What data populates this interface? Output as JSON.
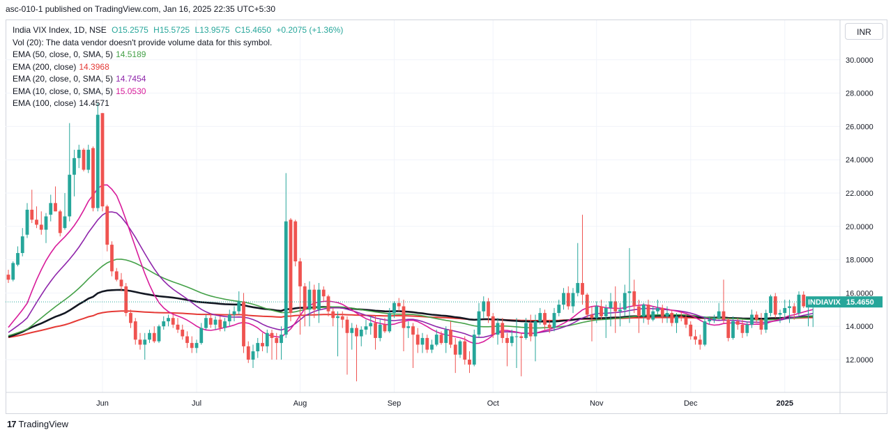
{
  "header": {
    "publisher_line": "asc-010-1 published on TradingView.com, Jan 16, 2025 22:35 UTC+5:30"
  },
  "currency_button": "INR",
  "legend": {
    "symbol_line": "India VIX Index, 1D, NSE",
    "ohlc": {
      "o": "O15.2575",
      "h": "H15.5725",
      "l": "L13.9575",
      "c": "C15.4650",
      "chg": "+0.2075 (+1.36%)"
    },
    "vol_line": "Vol (20): The data vendor doesn't provide volume data for this symbol.",
    "ema_rows": [
      {
        "label": "EMA (50, close, 0, SMA, 5)",
        "value": "14.5189",
        "color": "#43a047"
      },
      {
        "label": "EMA (200, close)",
        "value": "14.3968",
        "color": "#e53935"
      },
      {
        "label": "EMA (20, close, 0, SMA, 5)",
        "value": "14.7454",
        "color": "#8e24aa"
      },
      {
        "label": "EMA (10, close, 0, SMA, 5)",
        "value": "15.0530",
        "color": "#d81b9a"
      },
      {
        "label": "EMA (100, close)",
        "value": "14.4571",
        "color": "#131722"
      }
    ]
  },
  "footer": {
    "brand": "TradingView",
    "logo_mark": "17"
  },
  "chart_data": {
    "type": "candlestick",
    "symbol": "INDIAVIX",
    "last_price_label": "15.4650",
    "ylim": [
      10,
      31.5
    ],
    "y_ticks": [
      12,
      14,
      16,
      18,
      20,
      22,
      24,
      26,
      28,
      30
    ],
    "y_tick_labels": [
      "12.0000",
      "14.0000",
      "16.0000",
      "18.0000",
      "20.0000",
      "22.0000",
      "24.0000",
      "26.0000",
      "28.0000",
      "30.0000"
    ],
    "x_tick_labels": [
      {
        "label": "Jun",
        "index": 20
      },
      {
        "label": "Jul",
        "index": 40
      },
      {
        "label": "Aug",
        "index": 62
      },
      {
        "label": "Sep",
        "index": 82
      },
      {
        "label": "Oct",
        "index": 103
      },
      {
        "label": "Nov",
        "index": 125
      },
      {
        "label": "Dec",
        "index": 145
      },
      {
        "label": "2025",
        "index": 165
      }
    ],
    "colors": {
      "up": "#26a69a",
      "down": "#ef5350",
      "ema10": "#d81b9a",
      "ema20": "#8e24aa",
      "ema50": "#43a047",
      "ema100": "#131722",
      "ema200": "#e53935",
      "last": "#26a69a"
    },
    "candles": [
      {
        "o": 17.1,
        "h": 17.4,
        "l": 16.6,
        "c": 16.8
      },
      {
        "o": 16.8,
        "h": 17.9,
        "l": 16.7,
        "c": 17.8
      },
      {
        "o": 17.7,
        "h": 18.8,
        "l": 17.6,
        "c": 18.4
      },
      {
        "o": 18.4,
        "h": 19.9,
        "l": 18.2,
        "c": 19.4
      },
      {
        "o": 19.5,
        "h": 21.4,
        "l": 19.3,
        "c": 21.0
      },
      {
        "o": 21.0,
        "h": 22.2,
        "l": 20.2,
        "c": 20.4
      },
      {
        "o": 20.4,
        "h": 21.2,
        "l": 19.9,
        "c": 20.1
      },
      {
        "o": 20.1,
        "h": 20.9,
        "l": 19.5,
        "c": 19.8
      },
      {
        "o": 19.8,
        "h": 20.8,
        "l": 19.0,
        "c": 20.6
      },
      {
        "o": 20.7,
        "h": 21.9,
        "l": 20.3,
        "c": 21.4
      },
      {
        "o": 21.4,
        "h": 22.4,
        "l": 20.9,
        "c": 20.9
      },
      {
        "o": 20.9,
        "h": 21.0,
        "l": 19.4,
        "c": 19.6
      },
      {
        "o": 19.9,
        "h": 22.0,
        "l": 19.8,
        "c": 20.6
      },
      {
        "o": 20.6,
        "h": 26.2,
        "l": 20.3,
        "c": 23.1
      },
      {
        "o": 23.1,
        "h": 24.6,
        "l": 21.8,
        "c": 24.1
      },
      {
        "o": 24.1,
        "h": 24.9,
        "l": 23.5,
        "c": 24.6
      },
      {
        "o": 24.6,
        "h": 24.7,
        "l": 23.3,
        "c": 23.4
      },
      {
        "o": 23.4,
        "h": 24.9,
        "l": 23.2,
        "c": 24.6
      },
      {
        "o": 24.7,
        "h": 24.8,
        "l": 20.9,
        "c": 21.1
      },
      {
        "o": 21.1,
        "h": 27.4,
        "l": 20.9,
        "c": 26.7
      },
      {
        "o": 26.8,
        "h": 26.8,
        "l": 20.9,
        "c": 21.2
      },
      {
        "o": 21.2,
        "h": 21.3,
        "l": 18.5,
        "c": 18.9
      },
      {
        "o": 18.9,
        "h": 19.1,
        "l": 17.0,
        "c": 17.3
      },
      {
        "o": 17.3,
        "h": 17.5,
        "l": 16.7,
        "c": 16.8
      },
      {
        "o": 16.8,
        "h": 17.2,
        "l": 16.1,
        "c": 16.4
      },
      {
        "o": 16.4,
        "h": 16.6,
        "l": 14.6,
        "c": 14.8
      },
      {
        "o": 14.8,
        "h": 15.0,
        "l": 13.9,
        "c": 14.2
      },
      {
        "o": 14.3,
        "h": 14.5,
        "l": 12.9,
        "c": 13.2
      },
      {
        "o": 13.2,
        "h": 13.6,
        "l": 12.6,
        "c": 12.9
      },
      {
        "o": 12.9,
        "h": 13.6,
        "l": 12.0,
        "c": 13.2
      },
      {
        "o": 13.2,
        "h": 13.8,
        "l": 13.0,
        "c": 13.6
      },
      {
        "o": 13.6,
        "h": 14.0,
        "l": 13.0,
        "c": 13.1
      },
      {
        "o": 13.1,
        "h": 14.1,
        "l": 13.0,
        "c": 14.0
      },
      {
        "o": 14.0,
        "h": 14.6,
        "l": 13.8,
        "c": 14.3
      },
      {
        "o": 14.3,
        "h": 14.7,
        "l": 14.0,
        "c": 14.5
      },
      {
        "o": 14.5,
        "h": 14.7,
        "l": 13.9,
        "c": 14.1
      },
      {
        "o": 14.1,
        "h": 14.5,
        "l": 13.6,
        "c": 13.8
      },
      {
        "o": 13.8,
        "h": 14.1,
        "l": 13.2,
        "c": 13.4
      },
      {
        "o": 13.4,
        "h": 13.7,
        "l": 12.7,
        "c": 13.0
      },
      {
        "o": 13.0,
        "h": 13.4,
        "l": 12.4,
        "c": 12.7
      },
      {
        "o": 12.7,
        "h": 13.2,
        "l": 12.4,
        "c": 13.0
      },
      {
        "o": 13.0,
        "h": 14.2,
        "l": 12.9,
        "c": 13.9
      },
      {
        "o": 13.9,
        "h": 14.7,
        "l": 13.8,
        "c": 14.5
      },
      {
        "o": 14.5,
        "h": 14.8,
        "l": 13.9,
        "c": 14.1
      },
      {
        "o": 14.1,
        "h": 14.6,
        "l": 13.8,
        "c": 14.4
      },
      {
        "o": 14.4,
        "h": 14.6,
        "l": 13.7,
        "c": 13.9
      },
      {
        "o": 13.9,
        "h": 14.5,
        "l": 13.7,
        "c": 14.3
      },
      {
        "o": 14.3,
        "h": 15.0,
        "l": 14.0,
        "c": 14.7
      },
      {
        "o": 14.7,
        "h": 15.2,
        "l": 14.3,
        "c": 14.9
      },
      {
        "o": 14.9,
        "h": 16.1,
        "l": 14.7,
        "c": 15.5
      },
      {
        "o": 15.5,
        "h": 16.0,
        "l": 12.4,
        "c": 12.8
      },
      {
        "o": 12.8,
        "h": 13.1,
        "l": 11.8,
        "c": 12.0
      },
      {
        "o": 12.0,
        "h": 12.9,
        "l": 11.5,
        "c": 12.5
      },
      {
        "o": 12.5,
        "h": 13.3,
        "l": 12.1,
        "c": 13.0
      },
      {
        "o": 13.0,
        "h": 13.6,
        "l": 12.5,
        "c": 12.8
      },
      {
        "o": 12.8,
        "h": 13.8,
        "l": 12.4,
        "c": 13.6
      },
      {
        "o": 13.6,
        "h": 13.8,
        "l": 12.0,
        "c": 13.3
      },
      {
        "o": 13.3,
        "h": 13.6,
        "l": 12.0,
        "c": 13.0
      },
      {
        "o": 13.0,
        "h": 14.0,
        "l": 12.0,
        "c": 13.5
      },
      {
        "o": 13.5,
        "h": 23.2,
        "l": 13.3,
        "c": 20.3
      },
      {
        "o": 20.4,
        "h": 20.5,
        "l": 14.3,
        "c": 14.8
      },
      {
        "o": 20.3,
        "h": 20.4,
        "l": 17.6,
        "c": 17.9
      },
      {
        "o": 17.9,
        "h": 18.1,
        "l": 13.5,
        "c": 16.4
      },
      {
        "o": 16.4,
        "h": 16.6,
        "l": 14.0,
        "c": 15.0
      },
      {
        "o": 15.0,
        "h": 16.7,
        "l": 14.0,
        "c": 16.2
      },
      {
        "o": 16.2,
        "h": 16.5,
        "l": 14.5,
        "c": 15.0
      },
      {
        "o": 15.0,
        "h": 16.6,
        "l": 14.2,
        "c": 16.2
      },
      {
        "o": 16.2,
        "h": 16.4,
        "l": 15.5,
        "c": 15.8
      },
      {
        "o": 15.8,
        "h": 15.9,
        "l": 14.6,
        "c": 14.9
      },
      {
        "o": 14.9,
        "h": 15.1,
        "l": 14.0,
        "c": 14.5
      },
      {
        "o": 14.5,
        "h": 14.9,
        "l": 12.2,
        "c": 14.6
      },
      {
        "o": 14.6,
        "h": 14.9,
        "l": 13.9,
        "c": 14.4
      },
      {
        "o": 14.4,
        "h": 14.6,
        "l": 11.1,
        "c": 13.6
      },
      {
        "o": 13.6,
        "h": 14.2,
        "l": 12.6,
        "c": 13.9
      },
      {
        "o": 13.9,
        "h": 14.1,
        "l": 10.7,
        "c": 13.4
      },
      {
        "o": 13.4,
        "h": 14.0,
        "l": 12.8,
        "c": 13.8
      },
      {
        "o": 13.8,
        "h": 14.4,
        "l": 13.5,
        "c": 14.0
      },
      {
        "o": 14.0,
        "h": 14.6,
        "l": 13.5,
        "c": 14.2
      },
      {
        "o": 14.2,
        "h": 14.6,
        "l": 12.6,
        "c": 13.3
      },
      {
        "o": 13.3,
        "h": 14.4,
        "l": 13.1,
        "c": 14.1
      },
      {
        "o": 14.1,
        "h": 14.5,
        "l": 13.6,
        "c": 13.7
      },
      {
        "o": 13.7,
        "h": 15.1,
        "l": 13.6,
        "c": 14.8
      },
      {
        "o": 14.8,
        "h": 15.5,
        "l": 14.5,
        "c": 15.4
      },
      {
        "o": 15.4,
        "h": 15.7,
        "l": 14.9,
        "c": 15.2
      },
      {
        "o": 15.2,
        "h": 15.6,
        "l": 12.5,
        "c": 13.9
      },
      {
        "o": 13.9,
        "h": 14.3,
        "l": 13.3,
        "c": 14.0
      },
      {
        "o": 14.0,
        "h": 14.2,
        "l": 11.5,
        "c": 13.5
      },
      {
        "o": 13.5,
        "h": 13.9,
        "l": 12.4,
        "c": 12.9
      },
      {
        "o": 12.9,
        "h": 13.6,
        "l": 12.4,
        "c": 13.3
      },
      {
        "o": 13.3,
        "h": 13.5,
        "l": 12.4,
        "c": 12.6
      },
      {
        "o": 12.6,
        "h": 13.2,
        "l": 12.4,
        "c": 12.9
      },
      {
        "o": 12.9,
        "h": 13.8,
        "l": 12.8,
        "c": 13.5
      },
      {
        "o": 13.5,
        "h": 13.7,
        "l": 12.9,
        "c": 13.0
      },
      {
        "o": 13.0,
        "h": 14.0,
        "l": 12.4,
        "c": 13.8
      },
      {
        "o": 13.8,
        "h": 14.3,
        "l": 12.7,
        "c": 12.9
      },
      {
        "o": 12.9,
        "h": 13.3,
        "l": 11.2,
        "c": 12.3
      },
      {
        "o": 12.3,
        "h": 13.2,
        "l": 12.1,
        "c": 13.1
      },
      {
        "o": 13.1,
        "h": 13.4,
        "l": 11.7,
        "c": 12.0
      },
      {
        "o": 12.0,
        "h": 12.5,
        "l": 11.2,
        "c": 11.7
      },
      {
        "o": 11.7,
        "h": 13.8,
        "l": 11.6,
        "c": 13.5
      },
      {
        "o": 13.5,
        "h": 15.4,
        "l": 13.3,
        "c": 14.9
      },
      {
        "o": 14.9,
        "h": 15.8,
        "l": 14.5,
        "c": 15.5
      },
      {
        "o": 15.5,
        "h": 15.7,
        "l": 14.2,
        "c": 14.6
      },
      {
        "o": 14.6,
        "h": 14.8,
        "l": 13.3,
        "c": 13.5
      },
      {
        "o": 13.5,
        "h": 14.5,
        "l": 12.9,
        "c": 14.2
      },
      {
        "o": 14.2,
        "h": 14.5,
        "l": 13.0,
        "c": 13.3
      },
      {
        "o": 13.3,
        "h": 13.6,
        "l": 11.6,
        "c": 13.0
      },
      {
        "o": 13.0,
        "h": 13.8,
        "l": 12.8,
        "c": 13.4
      },
      {
        "o": 13.4,
        "h": 14.5,
        "l": 11.5,
        "c": 13.4
      },
      {
        "o": 13.4,
        "h": 13.6,
        "l": 11.0,
        "c": 13.3
      },
      {
        "o": 13.3,
        "h": 14.5,
        "l": 13.2,
        "c": 14.2
      },
      {
        "o": 14.2,
        "h": 14.7,
        "l": 13.1,
        "c": 13.4
      },
      {
        "o": 13.4,
        "h": 14.7,
        "l": 11.9,
        "c": 14.3
      },
      {
        "o": 14.3,
        "h": 15.1,
        "l": 14.1,
        "c": 14.8
      },
      {
        "o": 14.8,
        "h": 15.0,
        "l": 13.8,
        "c": 14.1
      },
      {
        "o": 14.1,
        "h": 14.4,
        "l": 13.6,
        "c": 13.9
      },
      {
        "o": 13.9,
        "h": 15.1,
        "l": 13.7,
        "c": 14.8
      },
      {
        "o": 14.8,
        "h": 15.6,
        "l": 14.6,
        "c": 15.3
      },
      {
        "o": 15.3,
        "h": 16.3,
        "l": 15.0,
        "c": 16.0
      },
      {
        "o": 16.0,
        "h": 16.4,
        "l": 15.0,
        "c": 15.2
      },
      {
        "o": 15.2,
        "h": 16.3,
        "l": 14.8,
        "c": 16.0
      },
      {
        "o": 16.0,
        "h": 19.0,
        "l": 15.8,
        "c": 16.6
      },
      {
        "o": 16.6,
        "h": 20.7,
        "l": 15.3,
        "c": 15.9
      },
      {
        "o": 15.9,
        "h": 16.0,
        "l": 14.5,
        "c": 14.7
      },
      {
        "o": 14.7,
        "h": 15.2,
        "l": 13.1,
        "c": 14.5
      },
      {
        "o": 14.5,
        "h": 15.5,
        "l": 14.2,
        "c": 15.2
      },
      {
        "o": 15.2,
        "h": 15.6,
        "l": 14.4,
        "c": 14.6
      },
      {
        "o": 14.6,
        "h": 15.3,
        "l": 13.3,
        "c": 15.1
      },
      {
        "o": 15.1,
        "h": 16.0,
        "l": 14.0,
        "c": 15.5
      },
      {
        "o": 15.5,
        "h": 16.4,
        "l": 13.6,
        "c": 14.9
      },
      {
        "o": 14.9,
        "h": 15.4,
        "l": 14.0,
        "c": 15.0
      },
      {
        "o": 15.0,
        "h": 16.5,
        "l": 14.6,
        "c": 16.0
      },
      {
        "o": 16.0,
        "h": 18.7,
        "l": 14.2,
        "c": 16.1
      },
      {
        "o": 16.1,
        "h": 16.8,
        "l": 14.8,
        "c": 15.2
      },
      {
        "o": 15.2,
        "h": 15.6,
        "l": 13.6,
        "c": 14.6
      },
      {
        "o": 14.6,
        "h": 15.4,
        "l": 14.2,
        "c": 15.3
      },
      {
        "o": 15.3,
        "h": 15.6,
        "l": 14.1,
        "c": 14.4
      },
      {
        "o": 14.4,
        "h": 15.2,
        "l": 14.3,
        "c": 14.9
      },
      {
        "o": 14.9,
        "h": 15.6,
        "l": 14.7,
        "c": 15.1
      },
      {
        "o": 15.1,
        "h": 15.3,
        "l": 14.2,
        "c": 14.6
      },
      {
        "o": 14.6,
        "h": 15.2,
        "l": 14.2,
        "c": 14.8
      },
      {
        "o": 14.8,
        "h": 15.0,
        "l": 14.0,
        "c": 14.2
      },
      {
        "o": 14.2,
        "h": 14.8,
        "l": 13.6,
        "c": 14.6
      },
      {
        "o": 14.6,
        "h": 14.9,
        "l": 14.3,
        "c": 14.5
      },
      {
        "o": 14.5,
        "h": 14.7,
        "l": 13.9,
        "c": 14.1
      },
      {
        "o": 14.1,
        "h": 14.3,
        "l": 13.2,
        "c": 13.4
      },
      {
        "o": 13.4,
        "h": 13.8,
        "l": 12.9,
        "c": 13.2
      },
      {
        "o": 13.2,
        "h": 13.5,
        "l": 12.6,
        "c": 12.9
      },
      {
        "o": 12.9,
        "h": 14.6,
        "l": 12.8,
        "c": 14.3
      },
      {
        "o": 14.3,
        "h": 14.6,
        "l": 14.1,
        "c": 14.4
      },
      {
        "o": 14.4,
        "h": 14.7,
        "l": 14.2,
        "c": 14.5
      },
      {
        "o": 14.5,
        "h": 15.4,
        "l": 14.4,
        "c": 14.9
      },
      {
        "o": 14.9,
        "h": 16.8,
        "l": 14.2,
        "c": 14.4
      },
      {
        "o": 14.4,
        "h": 14.5,
        "l": 13.1,
        "c": 13.3
      },
      {
        "o": 13.3,
        "h": 14.6,
        "l": 13.2,
        "c": 14.3
      },
      {
        "o": 14.3,
        "h": 14.5,
        "l": 13.8,
        "c": 14.1
      },
      {
        "o": 14.1,
        "h": 14.4,
        "l": 13.3,
        "c": 13.6
      },
      {
        "o": 13.6,
        "h": 14.3,
        "l": 13.4,
        "c": 14.1
      },
      {
        "o": 14.1,
        "h": 15.0,
        "l": 13.9,
        "c": 14.7
      },
      {
        "o": 14.7,
        "h": 14.9,
        "l": 14.2,
        "c": 14.4
      },
      {
        "o": 14.4,
        "h": 14.8,
        "l": 13.5,
        "c": 13.8
      },
      {
        "o": 13.8,
        "h": 15.0,
        "l": 13.6,
        "c": 14.8
      },
      {
        "o": 14.8,
        "h": 15.9,
        "l": 14.6,
        "c": 15.8
      },
      {
        "o": 15.8,
        "h": 16.0,
        "l": 14.5,
        "c": 14.7
      },
      {
        "o": 14.7,
        "h": 15.0,
        "l": 14.2,
        "c": 14.8
      },
      {
        "o": 14.8,
        "h": 15.6,
        "l": 14.4,
        "c": 15.1
      },
      {
        "o": 15.1,
        "h": 15.6,
        "l": 14.2,
        "c": 15.2
      },
      {
        "o": 15.2,
        "h": 15.4,
        "l": 14.4,
        "c": 14.8
      },
      {
        "o": 14.8,
        "h": 16.1,
        "l": 14.6,
        "c": 15.9
      },
      {
        "o": 15.9,
        "h": 16.1,
        "l": 15.1,
        "c": 15.2
      },
      {
        "o": 15.2,
        "h": 15.7,
        "l": 14.0,
        "c": 15.3
      },
      {
        "o": 15.2575,
        "h": 15.5725,
        "l": 13.9575,
        "c": 15.465
      }
    ]
  }
}
